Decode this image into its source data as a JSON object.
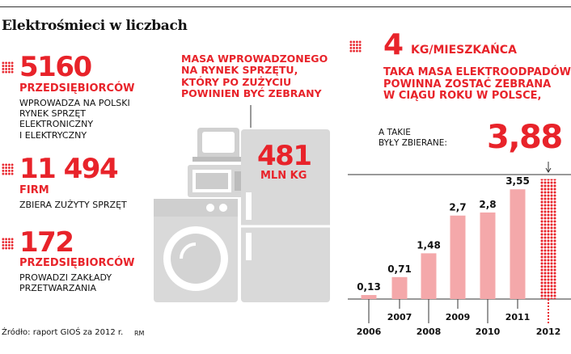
{
  "title": "Elektrośmieci w liczbach",
  "stats": [
    {
      "number": "5160",
      "label": "PRZEDSIĘBIORCÓW",
      "desc": [
        "WPROWADZA NA POLSKI",
        "RYNEK SPRZĘT",
        "ELEKTRONICZNY",
        "I ELEKTRYCZNY"
      ]
    },
    {
      "number": "11 494",
      "label": "FIRM",
      "desc": [
        "ZBIERA ZUŻYTY SPRZĘT"
      ]
    },
    {
      "number": "172",
      "label": "PRZEDSIĘBIORCÓW",
      "desc": [
        "PROWADZI ZAKŁADY",
        "PRZETWARZANIA"
      ]
    }
  ],
  "appliances": {
    "caption": [
      "MASA WPROWADZONEGO",
      "NA RYNEK SPRZĘTU,",
      "KTÓRY PO ZUŻYCIU",
      "POWINIEN BYĆ ZEBRANY"
    ],
    "value": "481",
    "unit": "MLN KG"
  },
  "target": {
    "number": "4",
    "unit": "KG/MIESZKAŃCA",
    "caption": [
      "TAKA MASA ELEKTROODPADÓW",
      "POWINNA ZOSTAĆ ZEBRANA",
      "W CIĄGU ROKU W POLSCE,"
    ]
  },
  "collected_caption": [
    "A TAKIE",
    "BYŁY ZBIERANE:"
  ],
  "highlight_value": "3,88",
  "source": "Źródło: raport GIOŚ za 2012 r.",
  "author": "RM",
  "colors": {
    "accent": "#e8232a",
    "bar": "#f4a8aa",
    "appliance": "#d9d9d9"
  },
  "chart_data": {
    "type": "bar",
    "categories": [
      "2006",
      "2007",
      "2008",
      "2009",
      "2010",
      "2011",
      "2012"
    ],
    "values": [
      0.13,
      0.71,
      1.48,
      2.7,
      2.8,
      3.55,
      3.88
    ],
    "data_labels": [
      "0,13",
      "0,71",
      "1,48",
      "2,7",
      "2,8",
      "3,55",
      ""
    ],
    "highlight_index": 6,
    "ylim": [
      0,
      4
    ],
    "grid": false
  }
}
